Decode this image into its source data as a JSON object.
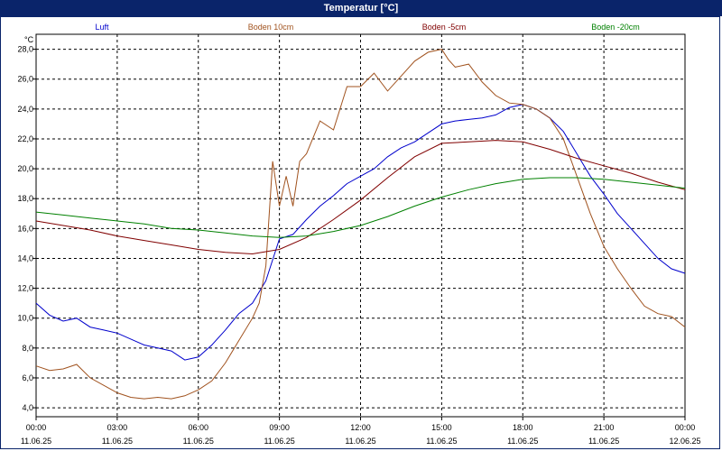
{
  "window": {
    "title": "Temperatur [°C]"
  },
  "chart_data": {
    "type": "line",
    "title": "Temperatur [°C]",
    "ylabel": "°C",
    "ylim": [
      3.4,
      29.0
    ],
    "yticks": [
      "28,0",
      "26,0",
      "24,0",
      "22,0",
      "20,0",
      "18,0",
      "16,0",
      "14,0",
      "12,0",
      "10,0",
      "8,0",
      "6,0",
      "4,0"
    ],
    "ytick_values": [
      28,
      26,
      24,
      22,
      20,
      18,
      16,
      14,
      12,
      10,
      8,
      6,
      4
    ],
    "xlim": [
      0,
      24
    ],
    "xtick_hours": [
      0,
      3,
      6,
      9,
      12,
      15,
      18,
      21,
      24
    ],
    "xtick_times": [
      "00:00",
      "03:00",
      "06:00",
      "09:00",
      "12:00",
      "15:00",
      "18:00",
      "21:00",
      "00:00"
    ],
    "xtick_dates": [
      "11.06.25",
      "11.06.25",
      "11.06.25",
      "11.06.25",
      "11.06.25",
      "11.06.25",
      "11.06.25",
      "11.06.25",
      "12.06.25"
    ],
    "grid": true,
    "legend_position": "top",
    "series": [
      {
        "name": "Luft",
        "color": "#0000cc",
        "x": [
          0,
          0.5,
          1,
          1.5,
          2,
          2.5,
          3,
          3.5,
          4,
          4.5,
          5,
          5.5,
          6,
          6.5,
          7,
          7.5,
          8,
          8.5,
          9,
          9.5,
          10,
          10.5,
          11,
          11.5,
          12,
          12.5,
          13,
          13.5,
          14,
          14.5,
          15,
          15.5,
          16,
          16.5,
          17,
          17.5,
          18,
          18.5,
          19,
          19.5,
          20,
          20.5,
          21,
          21.5,
          22,
          22.5,
          23,
          23.5,
          24
        ],
        "y": [
          11.0,
          10.2,
          9.8,
          10.0,
          9.4,
          9.2,
          9.0,
          8.6,
          8.2,
          8.0,
          7.8,
          7.2,
          7.4,
          8.2,
          9.2,
          10.3,
          11.0,
          12.5,
          15.3,
          15.6,
          16.6,
          17.5,
          18.2,
          19.0,
          19.5,
          20.0,
          20.8,
          21.4,
          21.8,
          22.4,
          23.0,
          23.2,
          23.3,
          23.4,
          23.6,
          24.1,
          24.3,
          24.0,
          23.4,
          22.5,
          21.0,
          19.5,
          18.3,
          17.0,
          16.0,
          15.0,
          14.0,
          13.3,
          13.0
        ]
      },
      {
        "name": "Boden 10cm",
        "color": "#a0521e",
        "x": [
          0,
          0.5,
          1,
          1.5,
          2,
          2.5,
          3,
          3.5,
          4,
          4.5,
          5,
          5.5,
          6,
          6.5,
          7,
          7.5,
          8,
          8.25,
          8.5,
          8.75,
          9,
          9.25,
          9.5,
          9.75,
          10,
          10.5,
          11,
          11.5,
          12,
          12.5,
          13,
          13.5,
          14,
          14.5,
          15,
          15.25,
          15.5,
          16,
          16.5,
          17,
          17.5,
          18,
          18.5,
          19,
          19.5,
          20,
          20.5,
          21,
          21.5,
          22,
          22.5,
          23,
          23.5,
          24
        ],
        "y": [
          6.8,
          6.5,
          6.6,
          6.9,
          6.0,
          5.5,
          5.0,
          4.7,
          4.6,
          4.7,
          4.6,
          4.8,
          5.2,
          5.8,
          7.0,
          8.5,
          10.0,
          11.0,
          13.5,
          20.5,
          17.5,
          19.5,
          17.5,
          20.5,
          21.0,
          23.2,
          22.6,
          25.5,
          25.5,
          26.4,
          25.2,
          26.2,
          27.2,
          27.8,
          28.0,
          27.3,
          26.8,
          27.0,
          25.8,
          24.9,
          24.4,
          24.3,
          24.0,
          23.4,
          22.0,
          19.5,
          17.0,
          14.8,
          13.3,
          12.0,
          10.8,
          10.3,
          10.1,
          9.4
        ]
      },
      {
        "name": "Boden -5cm",
        "color": "#800000",
        "x": [
          0,
          1,
          2,
          3,
          4,
          5,
          6,
          7,
          8,
          9,
          10,
          11,
          12,
          13,
          14,
          15,
          16,
          17,
          18,
          19,
          20,
          21,
          22,
          23,
          24
        ],
        "y": [
          16.5,
          16.2,
          15.9,
          15.5,
          15.2,
          14.9,
          14.6,
          14.4,
          14.3,
          14.6,
          15.4,
          16.6,
          17.9,
          19.4,
          20.8,
          21.7,
          21.8,
          21.9,
          21.8,
          21.3,
          20.7,
          20.2,
          19.7,
          19.1,
          18.6
        ]
      },
      {
        "name": "Boden -20cm",
        "color": "#008000",
        "x": [
          0,
          1,
          2,
          3,
          4,
          5,
          6,
          7,
          8,
          9,
          10,
          11,
          12,
          13,
          14,
          15,
          16,
          17,
          18,
          19,
          20,
          21,
          22,
          23,
          24
        ],
        "y": [
          17.1,
          16.9,
          16.7,
          16.5,
          16.3,
          16.0,
          15.9,
          15.7,
          15.5,
          15.4,
          15.5,
          15.8,
          16.2,
          16.8,
          17.5,
          18.1,
          18.6,
          19.0,
          19.3,
          19.4,
          19.4,
          19.3,
          19.1,
          18.9,
          18.7
        ]
      }
    ]
  }
}
